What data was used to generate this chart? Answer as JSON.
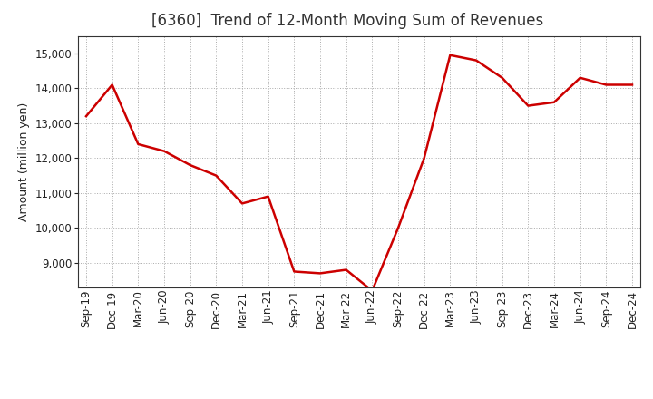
{
  "title": "[6360]  Trend of 12-Month Moving Sum of Revenues",
  "ylabel": "Amount (million yen)",
  "line_color": "#CC0000",
  "background_color": "#FFFFFF",
  "plot_bg_color": "#FFFFFF",
  "grid_color": "#AAAAAA",
  "labels": [
    "Sep-19",
    "Dec-19",
    "Mar-20",
    "Jun-20",
    "Sep-20",
    "Dec-20",
    "Mar-21",
    "Jun-21",
    "Sep-21",
    "Dec-21",
    "Mar-22",
    "Jun-22",
    "Sep-22",
    "Dec-22",
    "Mar-23",
    "Jun-23",
    "Sep-23",
    "Dec-23",
    "Mar-24",
    "Jun-24",
    "Sep-24",
    "Dec-24"
  ],
  "values": [
    13200,
    14100,
    12400,
    12200,
    11800,
    11500,
    10700,
    10900,
    8750,
    8700,
    8800,
    8200,
    10000,
    12000,
    14950,
    14800,
    14300,
    13500,
    13600,
    14300,
    14100,
    14100
  ],
  "ylim_min": 8300,
  "ylim_max": 15500,
  "yticks": [
    9000,
    10000,
    11000,
    12000,
    13000,
    14000,
    15000
  ],
  "title_fontsize": 12,
  "title_color": "#333333",
  "axis_fontsize": 9,
  "tick_fontsize": 8.5,
  "line_width": 1.8
}
